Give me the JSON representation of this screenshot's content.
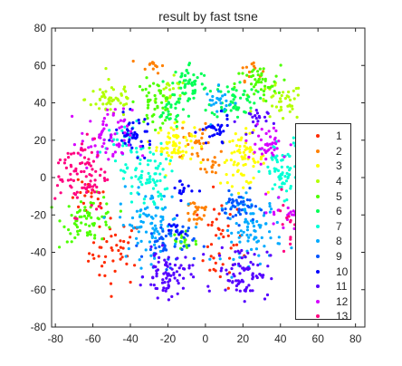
{
  "chart_data": {
    "type": "scatter",
    "title": "result by fast tsne",
    "xlabel": "",
    "ylabel": "",
    "xlim": [
      -82,
      85
    ],
    "ylim": [
      -80,
      80
    ],
    "xticks": [
      -80,
      -60,
      -40,
      -20,
      0,
      20,
      40,
      60,
      80
    ],
    "yticks": [
      -80,
      -60,
      -40,
      -20,
      0,
      20,
      40,
      60,
      80
    ],
    "xtick_labels": [
      "-80",
      "-60",
      "-40",
      "-20",
      "0",
      "20",
      "40",
      "60",
      "80"
    ],
    "ytick_labels": [
      "-80",
      "-60",
      "-40",
      "-20",
      "0",
      "20",
      "40",
      "60",
      "80"
    ],
    "grid": false,
    "legend_position": "lower-right",
    "series": [
      {
        "name": "1",
        "color": "#ff2a00",
        "clusters": [
          {
            "x": -48,
            "y": -40,
            "sx": 7,
            "sy": 9,
            "n": 45
          },
          {
            "x": 8,
            "y": -35,
            "sx": 6,
            "sy": 12,
            "n": 40
          },
          {
            "x": -62,
            "y": -12,
            "sx": 5,
            "sy": 5,
            "n": 20
          }
        ]
      },
      {
        "name": "2",
        "color": "#ff8000",
        "clusters": [
          {
            "x": -6,
            "y": 20,
            "sx": 4,
            "sy": 6,
            "n": 25
          },
          {
            "x": -5,
            "y": -18,
            "sx": 4,
            "sy": 4,
            "n": 25
          },
          {
            "x": 4,
            "y": 8,
            "sx": 3,
            "sy": 4,
            "n": 15
          },
          {
            "x": -28,
            "y": 60,
            "sx": 3,
            "sy": 2,
            "n": 12
          },
          {
            "x": 24,
            "y": 58,
            "sx": 3,
            "sy": 3,
            "n": 12
          }
        ]
      },
      {
        "name": "3",
        "color": "#ffff00",
        "clusters": [
          {
            "x": -16,
            "y": 18,
            "sx": 5,
            "sy": 5,
            "n": 70
          },
          {
            "x": 20,
            "y": 10,
            "sx": 6,
            "sy": 7,
            "n": 70
          }
        ]
      },
      {
        "name": "4",
        "color": "#b3ff00",
        "clusters": [
          {
            "x": -50,
            "y": 42,
            "sx": 7,
            "sy": 5,
            "n": 50
          },
          {
            "x": 40,
            "y": 40,
            "sx": 6,
            "sy": 5,
            "n": 40
          },
          {
            "x": -18,
            "y": 45,
            "sx": 4,
            "sy": 4,
            "n": 20
          }
        ]
      },
      {
        "name": "5",
        "color": "#4dff00",
        "clusters": [
          {
            "x": -62,
            "y": -22,
            "sx": 7,
            "sy": 6,
            "n": 70
          },
          {
            "x": -27,
            "y": 40,
            "sx": 5,
            "sy": 6,
            "n": 50
          },
          {
            "x": 28,
            "y": 50,
            "sx": 6,
            "sy": 5,
            "n": 45
          },
          {
            "x": -12,
            "y": -34,
            "sx": 4,
            "sy": 4,
            "n": 20
          }
        ]
      },
      {
        "name": "6",
        "color": "#00ff55",
        "clusters": [
          {
            "x": -8,
            "y": 50,
            "sx": 5,
            "sy": 6,
            "n": 55
          },
          {
            "x": 15,
            "y": 42,
            "sx": 6,
            "sy": 5,
            "n": 55
          },
          {
            "x": -20,
            "y": 35,
            "sx": 4,
            "sy": 4,
            "n": 25
          }
        ]
      },
      {
        "name": "7",
        "color": "#00ffd5",
        "clusters": [
          {
            "x": -32,
            "y": 0,
            "sx": 6,
            "sy": 9,
            "n": 80
          },
          {
            "x": 42,
            "y": 2,
            "sx": 6,
            "sy": 9,
            "n": 70
          },
          {
            "x": -45,
            "y": 20,
            "sx": 5,
            "sy": 5,
            "n": 25
          }
        ]
      },
      {
        "name": "8",
        "color": "#00aaff",
        "clusters": [
          {
            "x": -30,
            "y": -25,
            "sx": 8,
            "sy": 9,
            "n": 90
          },
          {
            "x": 25,
            "y": -28,
            "sx": 8,
            "sy": 9,
            "n": 90
          },
          {
            "x": 8,
            "y": 40,
            "sx": 4,
            "sy": 4,
            "n": 25
          }
        ]
      },
      {
        "name": "9",
        "color": "#0055ff",
        "clusters": [
          {
            "x": -20,
            "y": -35,
            "sx": 7,
            "sy": 6,
            "n": 50
          },
          {
            "x": 18,
            "y": -16,
            "sx": 5,
            "sy": 4,
            "n": 40
          }
        ]
      },
      {
        "name": "10",
        "color": "#0000ff",
        "clusters": [
          {
            "x": -38,
            "y": 23,
            "sx": 5,
            "sy": 5,
            "n": 45
          },
          {
            "x": 5,
            "y": 24,
            "sx": 4,
            "sy": 4,
            "n": 30
          },
          {
            "x": -12,
            "y": -6,
            "sx": 3,
            "sy": 3,
            "n": 15
          },
          {
            "x": -16,
            "y": -28,
            "sx": 3,
            "sy": 3,
            "n": 12
          }
        ]
      },
      {
        "name": "11",
        "color": "#5500ff",
        "clusters": [
          {
            "x": -20,
            "y": -52,
            "sx": 6,
            "sy": 6,
            "n": 75
          },
          {
            "x": 20,
            "y": -50,
            "sx": 7,
            "sy": 7,
            "n": 75
          },
          {
            "x": 25,
            "y": 30,
            "sx": 4,
            "sy": 4,
            "n": 20
          }
        ]
      },
      {
        "name": "12",
        "color": "#d500ff",
        "clusters": [
          {
            "x": -53,
            "y": 20,
            "sx": 7,
            "sy": 8,
            "n": 70
          },
          {
            "x": 33,
            "y": 18,
            "sx": 6,
            "sy": 5,
            "n": 40
          },
          {
            "x": 42,
            "y": -18,
            "sx": 4,
            "sy": 5,
            "n": 20
          }
        ]
      },
      {
        "name": "13",
        "color": "#ff0080",
        "clusters": [
          {
            "x": -66,
            "y": 2,
            "sx": 7,
            "sy": 10,
            "n": 90
          },
          {
            "x": 52,
            "y": -22,
            "sx": 6,
            "sy": 8,
            "n": 50
          }
        ]
      }
    ]
  }
}
